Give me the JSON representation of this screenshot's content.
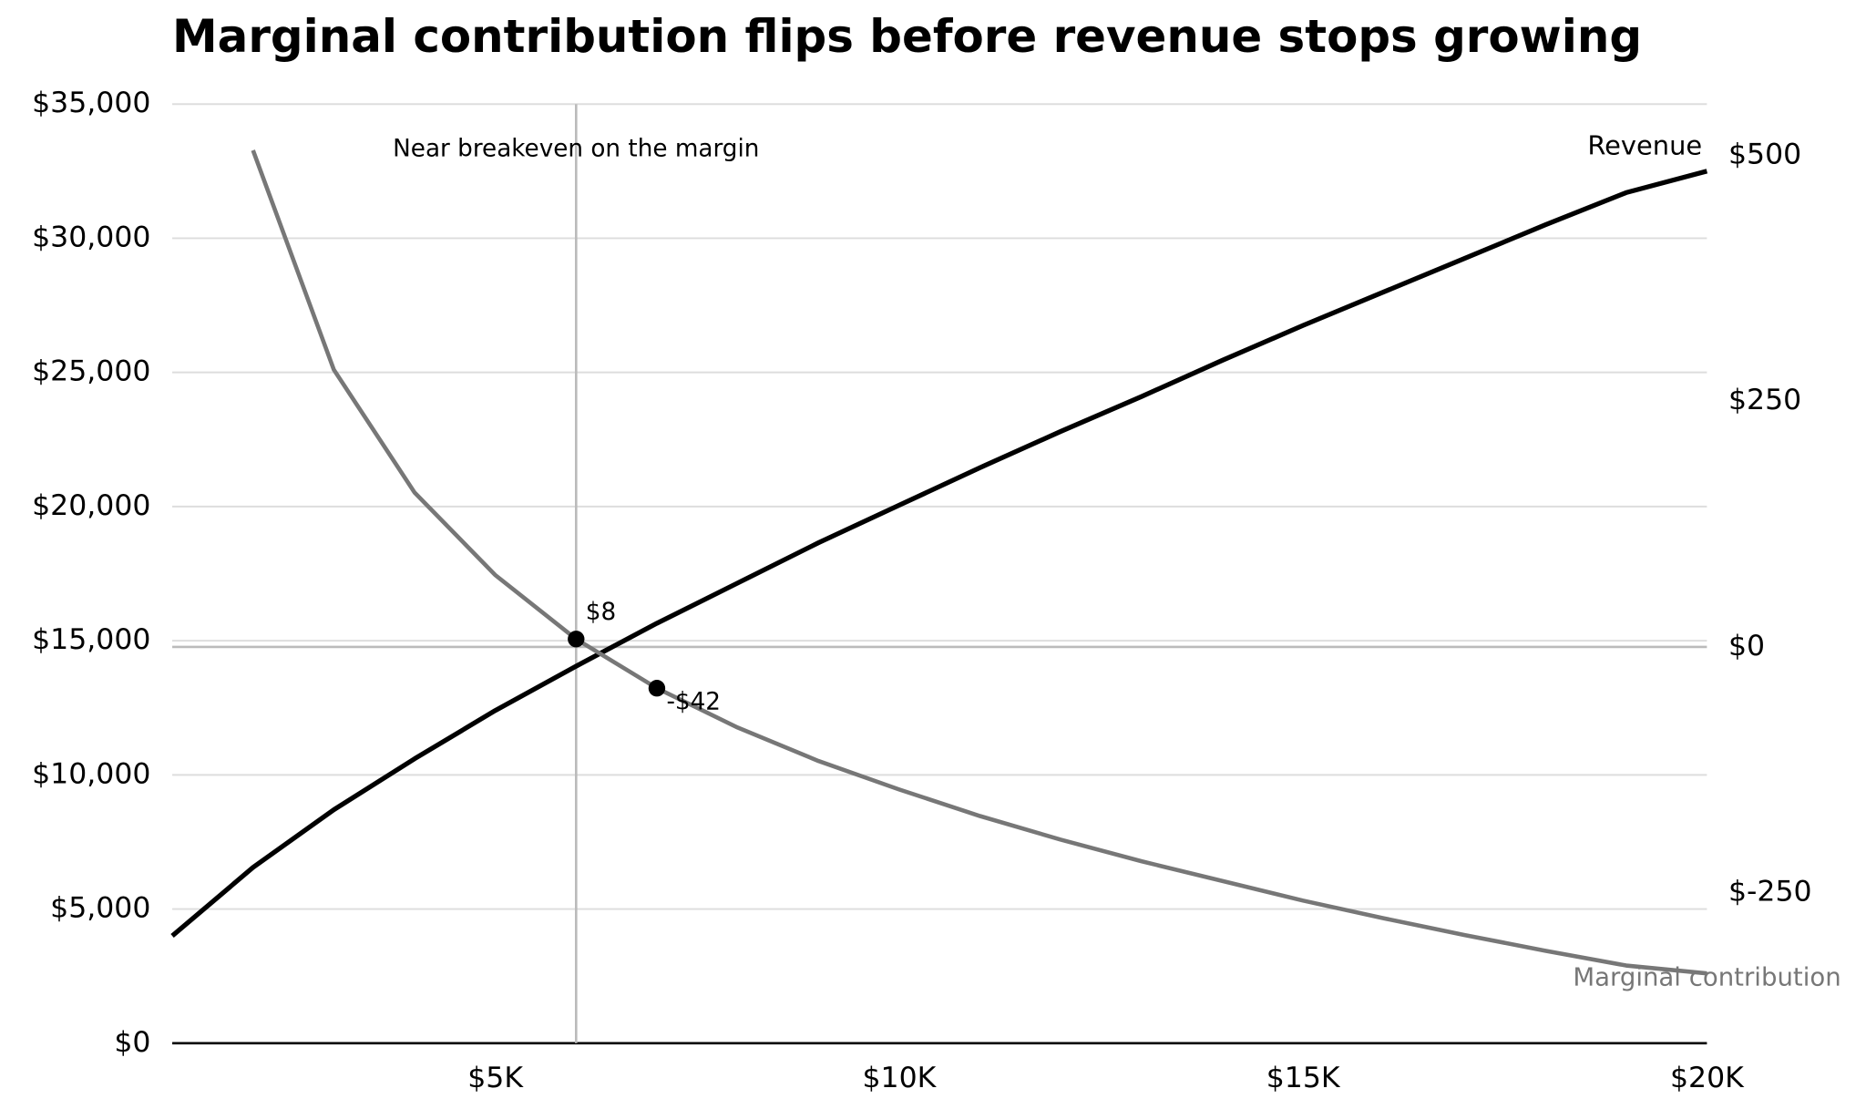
{
  "chart_data": {
    "type": "line",
    "title": "Marginal contribution flips before revenue stops growing",
    "x": [
      1000,
      2000,
      3000,
      4000,
      5000,
      6000,
      7000,
      8000,
      9000,
      10000,
      11000,
      12000,
      13000,
      14000,
      15000,
      16000,
      17000,
      18000,
      19000,
      20000
    ],
    "series": [
      {
        "name": "Revenue",
        "color": "#000000",
        "values": [
          4000,
          6550,
          8700,
          10600,
          12400,
          14050,
          15650,
          17150,
          18650,
          20050,
          21450,
          22800,
          24100,
          25450,
          26750,
          28000,
          29250,
          30500,
          31700,
          32500
        ]
      },
      {
        "name": "Marginal contribution",
        "color": "#777777",
        "axis": "y2",
        "values": [
          null,
          505,
          282,
          157,
          73,
          8,
          -42,
          -82,
          -116,
          -145,
          -172,
          -196,
          -218,
          -238,
          -258,
          -276,
          -293,
          -309,
          -324,
          -332
        ],
        "value_labels": [
          null,
          null,
          null,
          null,
          null,
          "$8",
          "-$42",
          null,
          null,
          null,
          null,
          null,
          null,
          null,
          null,
          null,
          null,
          null,
          null,
          null
        ]
      }
    ],
    "xlim": [
      1000,
      20000
    ],
    "xticks": [
      {
        "value": 5000,
        "label": "$5K"
      },
      {
        "value": 10000,
        "label": "$10K"
      },
      {
        "value": 15000,
        "label": "$15K"
      },
      {
        "value": 20000,
        "label": "$20K"
      }
    ],
    "ylim": [
      0,
      35000
    ],
    "yticks": [
      {
        "value": 0,
        "label": "$0"
      },
      {
        "value": 5000,
        "label": "$5,000"
      },
      {
        "value": 10000,
        "label": "$10,000"
      },
      {
        "value": 15000,
        "label": "$15,000"
      },
      {
        "value": 20000,
        "label": "$20,000"
      },
      {
        "value": 25000,
        "label": "$25,000"
      },
      {
        "value": 30000,
        "label": "$30,000"
      },
      {
        "value": 35000,
        "label": "$35,000"
      }
    ],
    "y2lim": [
      -403,
      552
    ],
    "y2ticks": [
      {
        "value": -250,
        "label": "$-250"
      },
      {
        "value": 0,
        "label": "$0"
      },
      {
        "value": 250,
        "label": "$250"
      },
      {
        "value": 500,
        "label": "$500"
      }
    ],
    "grid": true,
    "reference_lines": [
      {
        "x": 6000,
        "label": "Near breakeven on the margin"
      },
      {
        "y2": 0
      }
    ]
  }
}
